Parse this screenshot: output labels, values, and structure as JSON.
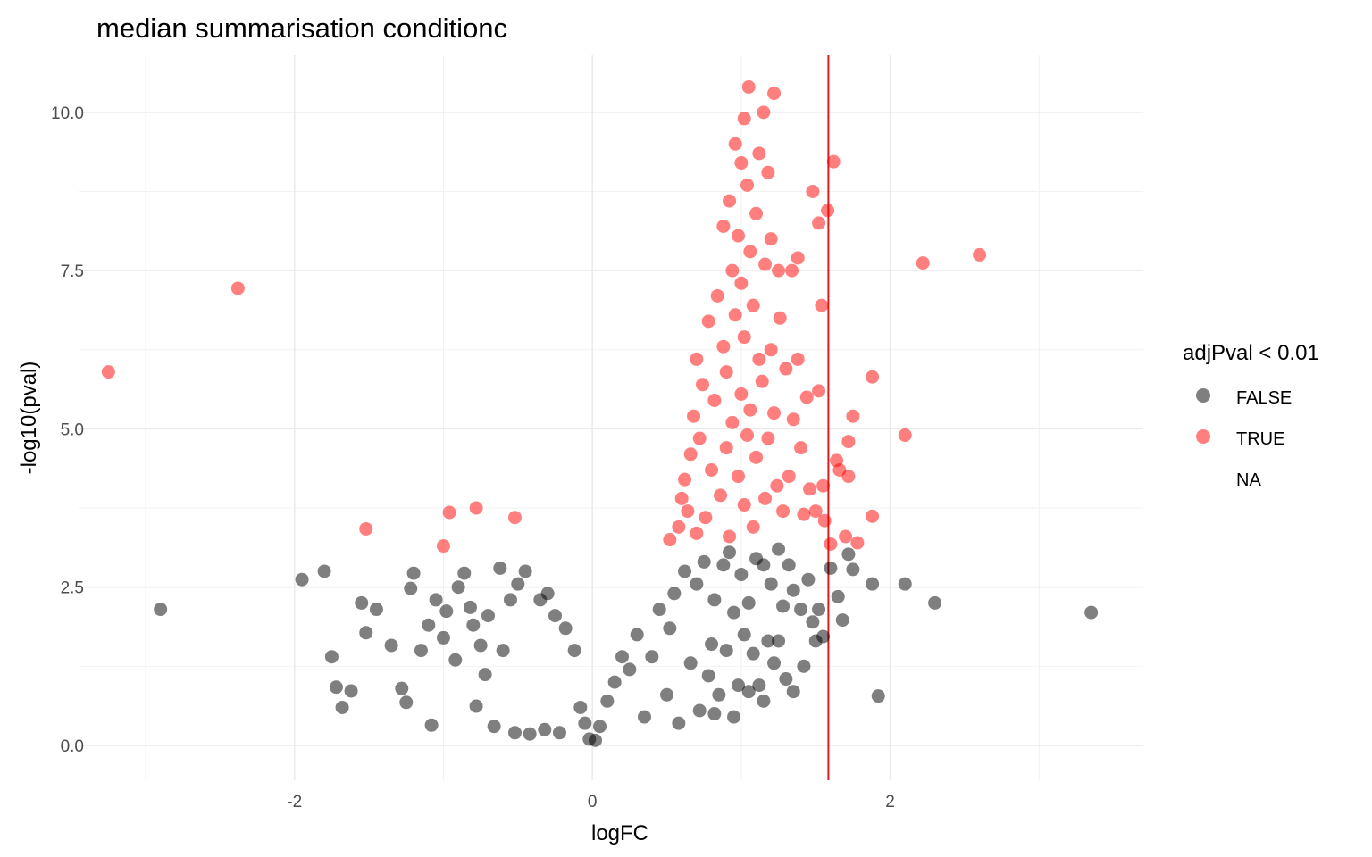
{
  "chart_data": {
    "type": "scatter",
    "title": "median summarisation conditionc",
    "xlabel": "logFC",
    "ylabel": "-log10(pval)",
    "xlim": [
      -3.45,
      3.7
    ],
    "ylim": [
      -0.55,
      10.9
    ],
    "x_ticks": [
      -2,
      0,
      2
    ],
    "x_tick_labels": [
      "-2",
      "0",
      "2"
    ],
    "y_ticks": [
      0.0,
      2.5,
      5.0,
      7.5,
      10.0
    ],
    "y_tick_labels": [
      "0.0",
      "2.5",
      "5.0",
      "7.5",
      "10.0"
    ],
    "x_minor_ticks": [
      -3,
      -1,
      1,
      3
    ],
    "y_minor_ticks": [
      1.25,
      3.75,
      6.25,
      8.75
    ],
    "grid": true,
    "reference_line": {
      "x": 1.585,
      "color": "#e31a1c"
    },
    "legend": {
      "title": "adjPval < 0.01",
      "placement": "right",
      "entries": [
        {
          "label": "FALSE",
          "color": "#000000"
        },
        {
          "label": "TRUE",
          "color": "#ff0000"
        },
        {
          "label": "NA",
          "color": null
        }
      ]
    },
    "series": [
      {
        "name": "FALSE",
        "color": "#000000",
        "opacity": 0.5,
        "points": [
          [
            -2.9,
            2.15
          ],
          [
            -1.95,
            2.62
          ],
          [
            -1.8,
            2.75
          ],
          [
            -1.75,
            1.4
          ],
          [
            -1.72,
            0.92
          ],
          [
            -1.62,
            0.86
          ],
          [
            -1.68,
            0.6
          ],
          [
            -1.55,
            2.25
          ],
          [
            -1.52,
            1.78
          ],
          [
            -1.45,
            2.15
          ],
          [
            -1.35,
            1.58
          ],
          [
            -1.28,
            0.9
          ],
          [
            -1.25,
            0.68
          ],
          [
            -1.2,
            2.72
          ],
          [
            -1.22,
            2.48
          ],
          [
            -1.15,
            1.5
          ],
          [
            -1.1,
            1.9
          ],
          [
            -1.08,
            0.32
          ],
          [
            -1.05,
            2.3
          ],
          [
            -1.0,
            1.7
          ],
          [
            -0.98,
            2.12
          ],
          [
            -0.92,
            1.35
          ],
          [
            -0.9,
            2.5
          ],
          [
            -0.86,
            2.72
          ],
          [
            -0.82,
            2.18
          ],
          [
            -0.8,
            1.9
          ],
          [
            -0.78,
            0.62
          ],
          [
            -0.75,
            1.58
          ],
          [
            -0.72,
            1.12
          ],
          [
            -0.7,
            2.05
          ],
          [
            -0.66,
            0.3
          ],
          [
            -0.62,
            2.8
          ],
          [
            -0.6,
            1.5
          ],
          [
            -0.55,
            2.3
          ],
          [
            -0.52,
            0.2
          ],
          [
            -0.5,
            2.55
          ],
          [
            -0.45,
            2.75
          ],
          [
            -0.42,
            0.18
          ],
          [
            -0.35,
            2.3
          ],
          [
            -0.32,
            0.25
          ],
          [
            -0.3,
            2.4
          ],
          [
            -0.25,
            2.05
          ],
          [
            -0.22,
            0.2
          ],
          [
            -0.18,
            1.85
          ],
          [
            -0.12,
            1.5
          ],
          [
            -0.08,
            0.6
          ],
          [
            -0.05,
            0.35
          ],
          [
            -0.02,
            0.1
          ],
          [
            0.02,
            0.08
          ],
          [
            0.05,
            0.3
          ],
          [
            0.1,
            0.7
          ],
          [
            0.15,
            1.0
          ],
          [
            0.2,
            1.4
          ],
          [
            0.25,
            1.2
          ],
          [
            0.3,
            1.75
          ],
          [
            0.35,
            0.45
          ],
          [
            0.4,
            1.4
          ],
          [
            0.45,
            2.15
          ],
          [
            0.5,
            0.8
          ],
          [
            0.52,
            1.85
          ],
          [
            0.55,
            2.4
          ],
          [
            0.58,
            0.35
          ],
          [
            0.62,
            2.75
          ],
          [
            0.66,
            1.3
          ],
          [
            0.7,
            2.55
          ],
          [
            0.72,
            0.55
          ],
          [
            0.75,
            2.9
          ],
          [
            0.78,
            1.1
          ],
          [
            0.8,
            1.6
          ],
          [
            0.82,
            2.3
          ],
          [
            0.85,
            0.8
          ],
          [
            0.88,
            2.85
          ],
          [
            0.9,
            1.5
          ],
          [
            0.92,
            3.05
          ],
          [
            0.95,
            2.1
          ],
          [
            0.98,
            0.95
          ],
          [
            1.0,
            2.7
          ],
          [
            1.02,
            1.75
          ],
          [
            1.05,
            2.25
          ],
          [
            1.08,
            1.45
          ],
          [
            1.1,
            2.95
          ],
          [
            1.12,
            0.95
          ],
          [
            1.15,
            2.85
          ],
          [
            1.18,
            1.65
          ],
          [
            1.2,
            2.55
          ],
          [
            1.22,
            1.3
          ],
          [
            1.25,
            3.1
          ],
          [
            1.28,
            2.2
          ],
          [
            1.3,
            1.05
          ],
          [
            1.32,
            2.85
          ],
          [
            1.35,
            2.45
          ],
          [
            1.4,
            2.15
          ],
          [
            1.42,
            1.25
          ],
          [
            1.45,
            2.62
          ],
          [
            1.48,
            1.95
          ],
          [
            1.5,
            1.65
          ],
          [
            1.52,
            2.15
          ],
          [
            1.55,
            1.72
          ],
          [
            1.6,
            2.8
          ],
          [
            1.65,
            2.35
          ],
          [
            1.68,
            1.98
          ],
          [
            1.72,
            3.02
          ],
          [
            1.75,
            2.78
          ],
          [
            1.88,
            2.55
          ],
          [
            1.92,
            0.78
          ],
          [
            2.1,
            2.55
          ],
          [
            2.3,
            2.25
          ],
          [
            3.35,
            2.1
          ],
          [
            1.15,
            0.7
          ],
          [
            1.05,
            0.85
          ],
          [
            0.95,
            0.45
          ],
          [
            0.82,
            0.5
          ],
          [
            1.25,
            1.65
          ],
          [
            1.35,
            0.85
          ]
        ]
      },
      {
        "name": "TRUE",
        "color": "#ff0000",
        "opacity": 0.5,
        "points": [
          [
            -3.25,
            5.9
          ],
          [
            -2.38,
            7.22
          ],
          [
            -1.52,
            3.42
          ],
          [
            -1.0,
            3.15
          ],
          [
            -0.96,
            3.68
          ],
          [
            -0.78,
            3.75
          ],
          [
            -0.52,
            3.6
          ],
          [
            0.52,
            3.25
          ],
          [
            0.58,
            3.45
          ],
          [
            0.6,
            3.9
          ],
          [
            0.62,
            4.2
          ],
          [
            0.64,
            3.7
          ],
          [
            0.66,
            4.6
          ],
          [
            0.68,
            5.2
          ],
          [
            0.7,
            3.35
          ],
          [
            0.7,
            6.1
          ],
          [
            0.72,
            4.85
          ],
          [
            0.74,
            5.7
          ],
          [
            0.76,
            3.6
          ],
          [
            0.78,
            6.7
          ],
          [
            0.8,
            4.35
          ],
          [
            0.82,
            5.45
          ],
          [
            0.84,
            7.1
          ],
          [
            0.86,
            3.95
          ],
          [
            0.88,
            8.2
          ],
          [
            0.88,
            6.3
          ],
          [
            0.9,
            4.7
          ],
          [
            0.9,
            5.9
          ],
          [
            0.92,
            8.6
          ],
          [
            0.92,
            3.3
          ],
          [
            0.94,
            7.5
          ],
          [
            0.94,
            5.1
          ],
          [
            0.96,
            6.8
          ],
          [
            0.96,
            9.5
          ],
          [
            0.98,
            4.25
          ],
          [
            0.98,
            8.05
          ],
          [
            1.0,
            5.55
          ],
          [
            1.0,
            7.3
          ],
          [
            1.0,
            9.2
          ],
          [
            1.02,
            3.8
          ],
          [
            1.02,
            6.45
          ],
          [
            1.02,
            9.9
          ],
          [
            1.04,
            4.9
          ],
          [
            1.04,
            8.85
          ],
          [
            1.05,
            10.4
          ],
          [
            1.06,
            7.8
          ],
          [
            1.06,
            5.3
          ],
          [
            1.08,
            3.45
          ],
          [
            1.08,
            6.95
          ],
          [
            1.1,
            8.4
          ],
          [
            1.1,
            4.55
          ],
          [
            1.12,
            6.1
          ],
          [
            1.12,
            9.35
          ],
          [
            1.14,
            5.75
          ],
          [
            1.15,
            10.0
          ],
          [
            1.16,
            3.9
          ],
          [
            1.16,
            7.6
          ],
          [
            1.18,
            4.85
          ],
          [
            1.18,
            9.05
          ],
          [
            1.2,
            6.25
          ],
          [
            1.2,
            8.0
          ],
          [
            1.22,
            10.3
          ],
          [
            1.22,
            5.25
          ],
          [
            1.24,
            4.1
          ],
          [
            1.25,
            7.5
          ],
          [
            1.26,
            6.75
          ],
          [
            1.28,
            3.7
          ],
          [
            1.3,
            5.95
          ],
          [
            1.32,
            4.25
          ],
          [
            1.34,
            7.5
          ],
          [
            1.35,
            5.15
          ],
          [
            1.38,
            6.1
          ],
          [
            1.38,
            7.7
          ],
          [
            1.4,
            4.7
          ],
          [
            1.42,
            3.65
          ],
          [
            1.44,
            5.5
          ],
          [
            1.46,
            4.05
          ],
          [
            1.48,
            8.75
          ],
          [
            1.5,
            3.7
          ],
          [
            1.52,
            8.25
          ],
          [
            1.52,
            5.6
          ],
          [
            1.54,
            6.95
          ],
          [
            1.55,
            4.1
          ],
          [
            1.56,
            3.55
          ],
          [
            1.58,
            8.45
          ],
          [
            1.6,
            3.18
          ],
          [
            1.62,
            9.22
          ],
          [
            1.64,
            4.5
          ],
          [
            1.66,
            4.35
          ],
          [
            1.7,
            3.3
          ],
          [
            1.72,
            4.8
          ],
          [
            1.72,
            4.25
          ],
          [
            1.75,
            5.2
          ],
          [
            1.78,
            3.2
          ],
          [
            1.88,
            3.62
          ],
          [
            1.88,
            5.82
          ],
          [
            2.1,
            4.9
          ],
          [
            2.22,
            7.62
          ],
          [
            2.6,
            7.75
          ]
        ]
      }
    ]
  }
}
